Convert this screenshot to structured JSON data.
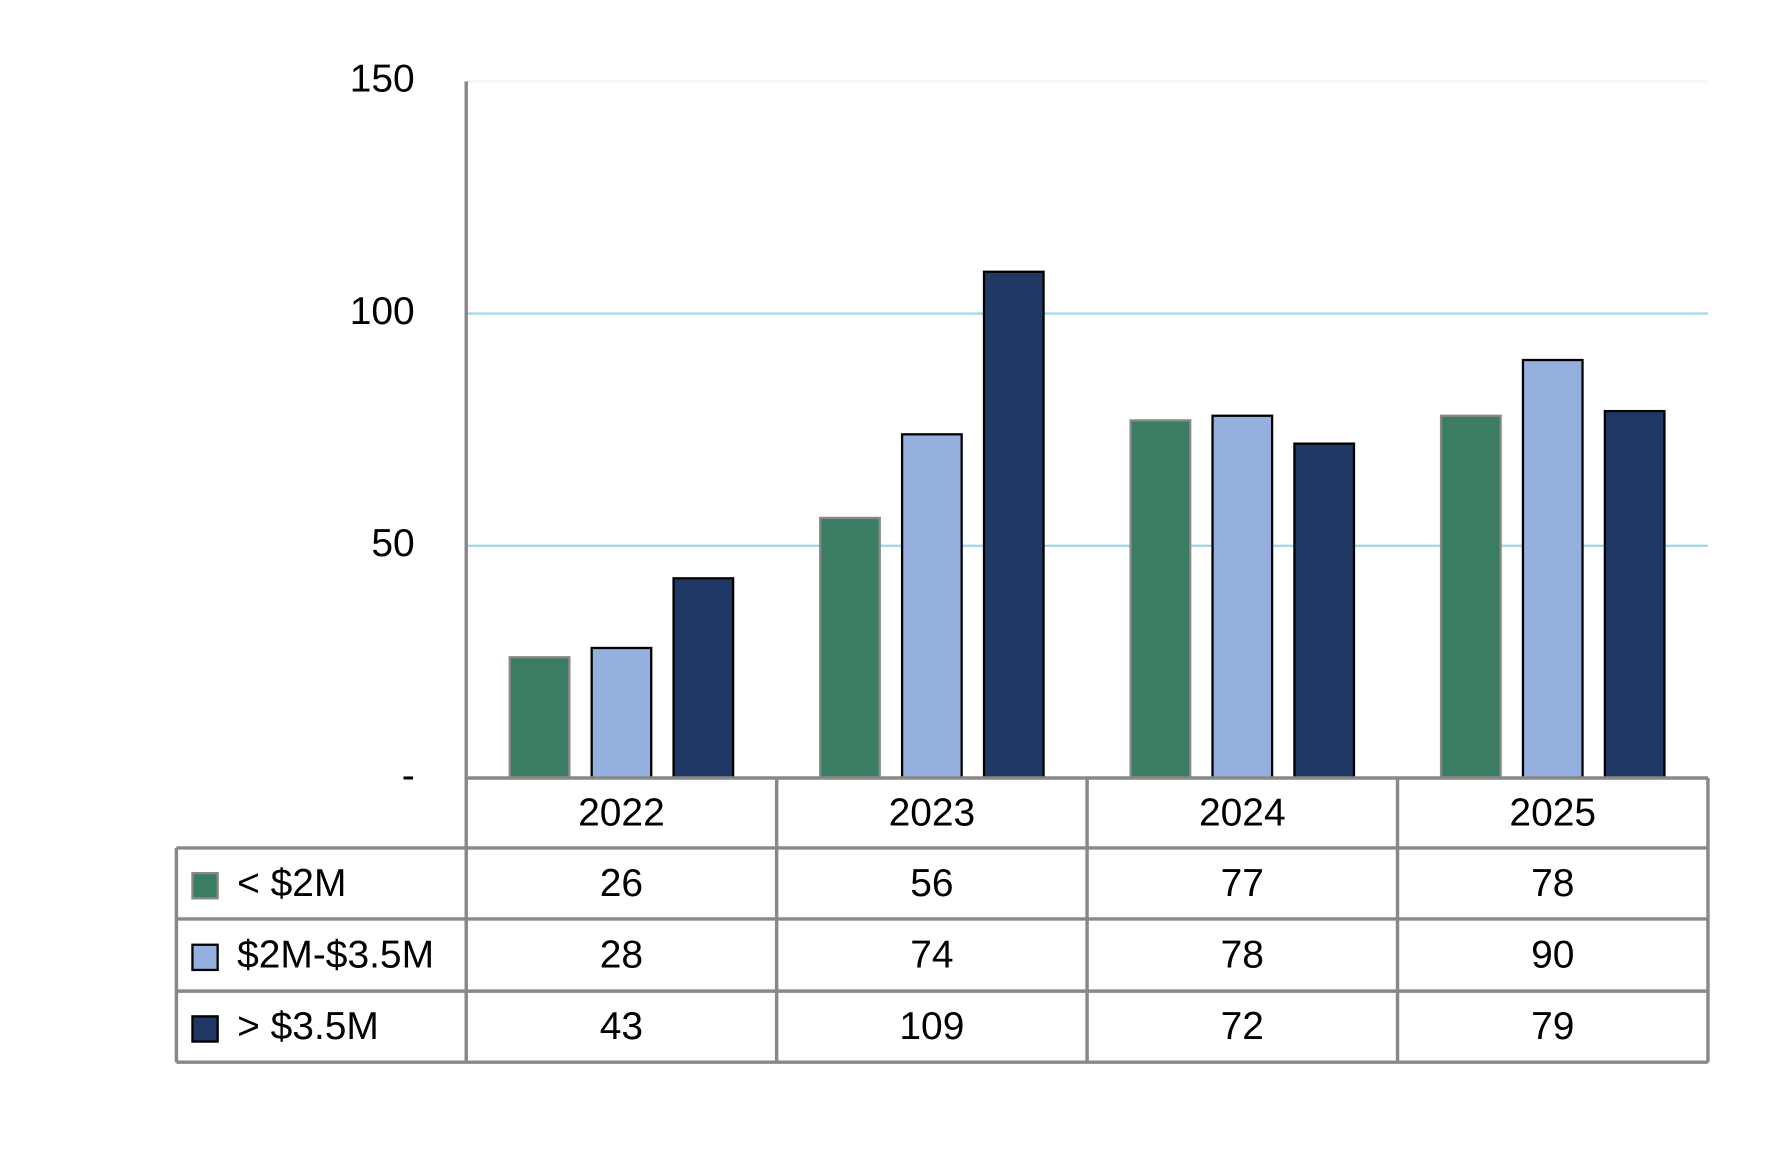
{
  "chart_data": {
    "type": "bar",
    "categories": [
      "2022",
      "2023",
      "2024",
      "2025"
    ],
    "series": [
      {
        "name": "< $2M",
        "color": "#3a7d62",
        "values": [
          26,
          56,
          77,
          78
        ]
      },
      {
        "name": "$2M-$3.5M",
        "color": "#95b0de",
        "values": [
          28,
          74,
          78,
          90
        ]
      },
      {
        "name": "> $3.5M",
        "color": "#1f3864",
        "values": [
          43,
          109,
          72,
          79
        ]
      }
    ],
    "ylim": [
      0,
      150
    ],
    "yticks": [
      {
        "value": 0,
        "label": "-"
      },
      50,
      100,
      150
    ],
    "grid": true,
    "legend": "data-table"
  }
}
